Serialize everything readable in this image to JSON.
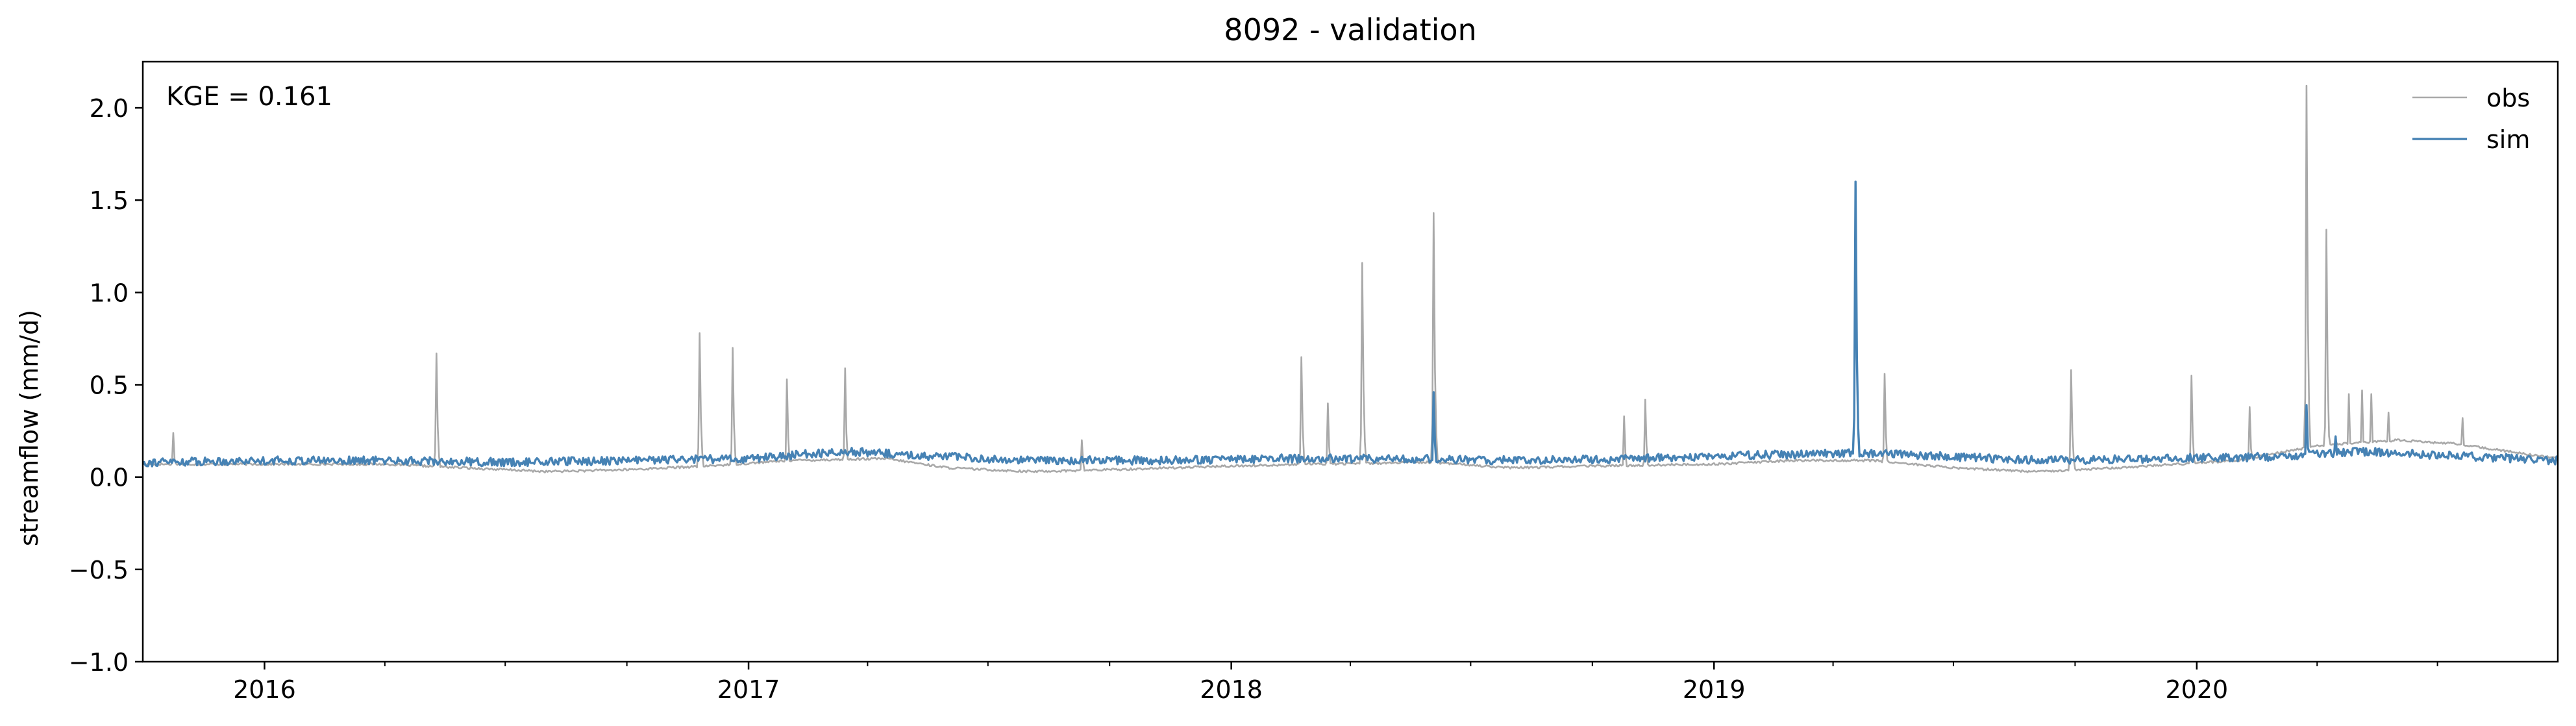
{
  "chart_data": {
    "type": "line",
    "title": "8092 - validation",
    "xlabel": "",
    "ylabel": "streamflow (mm/d)",
    "annotation": "KGE = 0.161",
    "xlim": [
      "2015-10-01",
      "2020-09-30"
    ],
    "ylim": [
      -1.0,
      2.25
    ],
    "y_ticks": [
      -1.0,
      -0.5,
      0.0,
      0.5,
      1.0,
      1.5,
      2.0
    ],
    "y_tick_labels": [
      "−1.0",
      "−0.5",
      "0.0",
      "0.5",
      "1.0",
      "1.5",
      "2.0"
    ],
    "x_ticks": [
      "2016-01-01",
      "2017-01-01",
      "2018-01-01",
      "2019-01-01",
      "2020-01-01"
    ],
    "x_tick_labels": [
      "2016",
      "2017",
      "2018",
      "2019",
      "2020"
    ],
    "legend_position": "top-right",
    "grid": false,
    "series": [
      {
        "name": "obs",
        "color": "#a9a9a9",
        "baseline": [
          [
            "2015-10-01",
            0.07
          ],
          [
            "2016-01-01",
            0.07
          ],
          [
            "2016-04-01",
            0.07
          ],
          [
            "2016-06-01",
            0.05
          ],
          [
            "2016-08-01",
            0.03
          ],
          [
            "2016-10-01",
            0.04
          ],
          [
            "2016-12-01",
            0.06
          ],
          [
            "2017-02-01",
            0.09
          ],
          [
            "2017-04-15",
            0.1
          ],
          [
            "2017-06-01",
            0.05
          ],
          [
            "2017-08-01",
            0.03
          ],
          [
            "2017-10-01",
            0.04
          ],
          [
            "2018-01-01",
            0.06
          ],
          [
            "2018-03-01",
            0.07
          ],
          [
            "2018-06-01",
            0.08
          ],
          [
            "2018-08-01",
            0.05
          ],
          [
            "2018-10-01",
            0.06
          ],
          [
            "2019-01-01",
            0.07
          ],
          [
            "2019-03-01",
            0.09
          ],
          [
            "2019-05-01",
            0.09
          ],
          [
            "2019-07-01",
            0.05
          ],
          [
            "2019-09-01",
            0.03
          ],
          [
            "2019-11-01",
            0.05
          ],
          [
            "2020-02-01",
            0.09
          ],
          [
            "2020-04-01",
            0.17
          ],
          [
            "2020-06-01",
            0.2
          ],
          [
            "2020-07-15",
            0.18
          ],
          [
            "2020-09-30",
            0.1
          ]
        ],
        "peaks": [
          [
            "2015-10-24",
            0.24
          ],
          [
            "2016-05-10",
            0.67
          ],
          [
            "2016-11-25",
            0.78
          ],
          [
            "2016-12-20",
            0.7
          ],
          [
            "2017-01-30",
            0.53
          ],
          [
            "2017-03-15",
            0.59
          ],
          [
            "2017-09-10",
            0.2
          ],
          [
            "2018-02-23",
            0.65
          ],
          [
            "2018-03-15",
            0.4
          ],
          [
            "2018-04-10",
            1.16
          ],
          [
            "2018-06-03",
            1.43
          ],
          [
            "2018-10-25",
            0.33
          ],
          [
            "2018-11-10",
            0.42
          ],
          [
            "2019-05-10",
            0.56
          ],
          [
            "2019-09-28",
            0.58
          ],
          [
            "2019-12-28",
            0.55
          ],
          [
            "2020-02-10",
            0.38
          ],
          [
            "2020-03-24",
            2.12
          ],
          [
            "2020-04-08",
            1.34
          ],
          [
            "2020-04-25",
            0.45
          ],
          [
            "2020-05-05",
            0.47
          ],
          [
            "2020-05-12",
            0.45
          ],
          [
            "2020-05-25",
            0.35
          ],
          [
            "2020-07-20",
            0.32
          ]
        ]
      },
      {
        "name": "sim",
        "color": "#4682b4",
        "baseline": [
          [
            "2015-10-01",
            0.08
          ],
          [
            "2016-01-01",
            0.09
          ],
          [
            "2016-04-01",
            0.09
          ],
          [
            "2016-07-01",
            0.08
          ],
          [
            "2016-10-01",
            0.09
          ],
          [
            "2017-01-01",
            0.1
          ],
          [
            "2017-03-15",
            0.14
          ],
          [
            "2017-05-01",
            0.12
          ],
          [
            "2017-08-01",
            0.09
          ],
          [
            "2017-11-01",
            0.09
          ],
          [
            "2018-02-01",
            0.1
          ],
          [
            "2018-05-01",
            0.1
          ],
          [
            "2018-08-01",
            0.09
          ],
          [
            "2018-11-01",
            0.1
          ],
          [
            "2019-02-01",
            0.12
          ],
          [
            "2019-04-15",
            0.13
          ],
          [
            "2019-06-01",
            0.12
          ],
          [
            "2019-09-01",
            0.09
          ],
          [
            "2019-12-01",
            0.1
          ],
          [
            "2020-03-01",
            0.11
          ],
          [
            "2020-05-01",
            0.14
          ],
          [
            "2020-07-01",
            0.12
          ],
          [
            "2020-09-30",
            0.09
          ]
        ],
        "peaks": [
          [
            "2018-06-03",
            0.46
          ],
          [
            "2019-04-18",
            1.6
          ],
          [
            "2020-03-24",
            0.39
          ],
          [
            "2020-04-15",
            0.22
          ]
        ]
      }
    ]
  }
}
